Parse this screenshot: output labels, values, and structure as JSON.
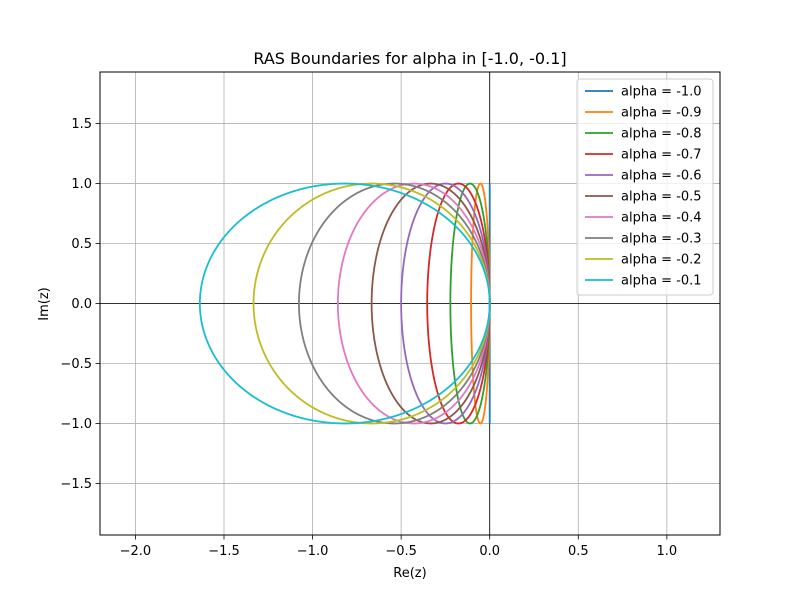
{
  "chart_data": {
    "type": "line",
    "title": "RAS Boundaries for alpha in [-1.0, -0.1]",
    "xlabel": "Re(z)",
    "ylabel": "Im(z)",
    "xlim": [
      -2.2,
      1.3
    ],
    "ylim": [
      -1.93,
      1.93
    ],
    "xticks": [
      -2.0,
      -1.5,
      -1.0,
      -0.5,
      0.0,
      0.5,
      1.0
    ],
    "xtick_labels": [
      "−2.0",
      "−1.5",
      "−1.0",
      "−0.5",
      "0.0",
      "0.5",
      "1.0"
    ],
    "yticks": [
      -1.5,
      -1.0,
      -0.5,
      0.0,
      0.5,
      1.0,
      1.5
    ],
    "ytick_labels": [
      "−1.5",
      "−1.0",
      "−0.5",
      "0.0",
      "0.5",
      "1.0",
      "1.5"
    ],
    "grid": true,
    "legend_position": "top-right",
    "reference_lines": {
      "x": 0.0,
      "y": 0.0
    },
    "series": [
      {
        "name": "alpha = -1.0",
        "alpha": -1.0,
        "color": "#1f77b4"
      },
      {
        "name": "alpha = -0.9",
        "alpha": -0.9,
        "color": "#ff7f0e"
      },
      {
        "name": "alpha = -0.8",
        "alpha": -0.8,
        "color": "#2ca02c"
      },
      {
        "name": "alpha = -0.7",
        "alpha": -0.7,
        "color": "#d62728"
      },
      {
        "name": "alpha = -0.6",
        "alpha": -0.6,
        "color": "#9467bd"
      },
      {
        "name": "alpha = -0.5",
        "alpha": -0.5,
        "color": "#8c564b"
      },
      {
        "name": "alpha = -0.4",
        "alpha": -0.4,
        "color": "#e377c2"
      },
      {
        "name": "alpha = -0.3",
        "alpha": -0.3,
        "color": "#7f7f7f"
      },
      {
        "name": "alpha = -0.2",
        "alpha": -0.2,
        "color": "#bcbd22"
      },
      {
        "name": "alpha = -0.1",
        "alpha": -0.1,
        "color": "#17becf"
      }
    ]
  }
}
